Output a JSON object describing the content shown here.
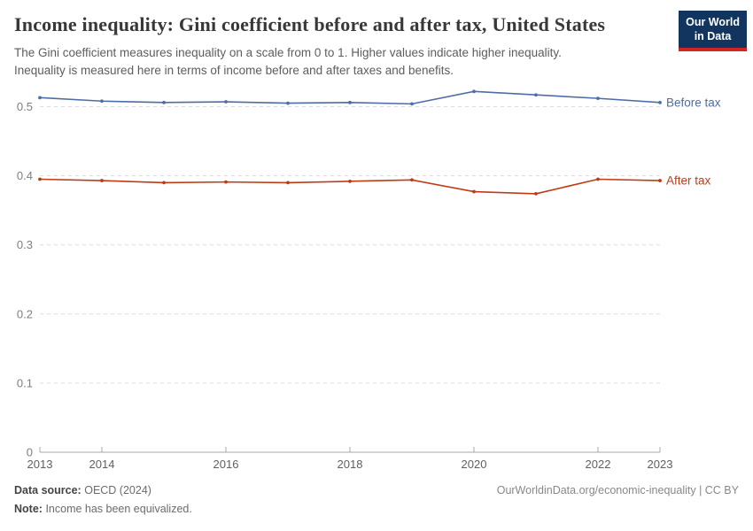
{
  "header": {
    "title": "Income inequality: Gini coefficient before and after tax, United States",
    "subtitle_line1": "The Gini coefficient measures inequality on a scale from 0 to 1. Higher values indicate higher inequality.",
    "subtitle_line2": "Inequality is measured here in terms of income before and after taxes and benefits.",
    "logo": {
      "line1": "Our World",
      "line2": "in Data"
    }
  },
  "chart_data": {
    "type": "line",
    "title": "Income inequality: Gini coefficient before and after tax, United States",
    "x": [
      2013,
      2014,
      2015,
      2016,
      2017,
      2018,
      2019,
      2020,
      2021,
      2022,
      2023
    ],
    "series": [
      {
        "name": "Before tax",
        "color": "#4e6da6",
        "values": [
          0.513,
          0.508,
          0.506,
          0.507,
          0.505,
          0.506,
          0.504,
          0.522,
          0.517,
          0.512,
          0.506
        ]
      },
      {
        "name": "After tax",
        "color": "#c03a14",
        "values": [
          0.395,
          0.393,
          0.39,
          0.391,
          0.39,
          0.392,
          0.394,
          0.377,
          0.374,
          0.395,
          0.393
        ]
      }
    ],
    "xlabel": "",
    "ylabel": "",
    "xlim": [
      2013,
      2023
    ],
    "ylim": [
      0,
      0.53
    ],
    "yticks": [
      {
        "v": 0,
        "label": "0"
      },
      {
        "v": 0.1,
        "label": "0.1"
      },
      {
        "v": 0.2,
        "label": "0.2"
      },
      {
        "v": 0.3,
        "label": "0.3"
      },
      {
        "v": 0.4,
        "label": "0.4"
      },
      {
        "v": 0.5,
        "label": "0.5"
      }
    ],
    "xticks": [
      2013,
      2014,
      2016,
      2018,
      2020,
      2022,
      2023
    ],
    "grid": "horizontal-dashed",
    "legend_position": "line-end-labels"
  },
  "footer": {
    "source_label": "Data source:",
    "source_value": "OECD (2024)",
    "note_label": "Note:",
    "note_value": "Income has been equivalized.",
    "credit": "OurWorldinData.org/economic-inequality | CC BY"
  },
  "colors": {
    "before_tax_line": "#4e6da6",
    "after_tax_line": "#c03a14",
    "logo_navy": "#12355f",
    "logo_red": "#cf2622",
    "gridline": "#dddddd",
    "axis": "#a8a8a8"
  }
}
